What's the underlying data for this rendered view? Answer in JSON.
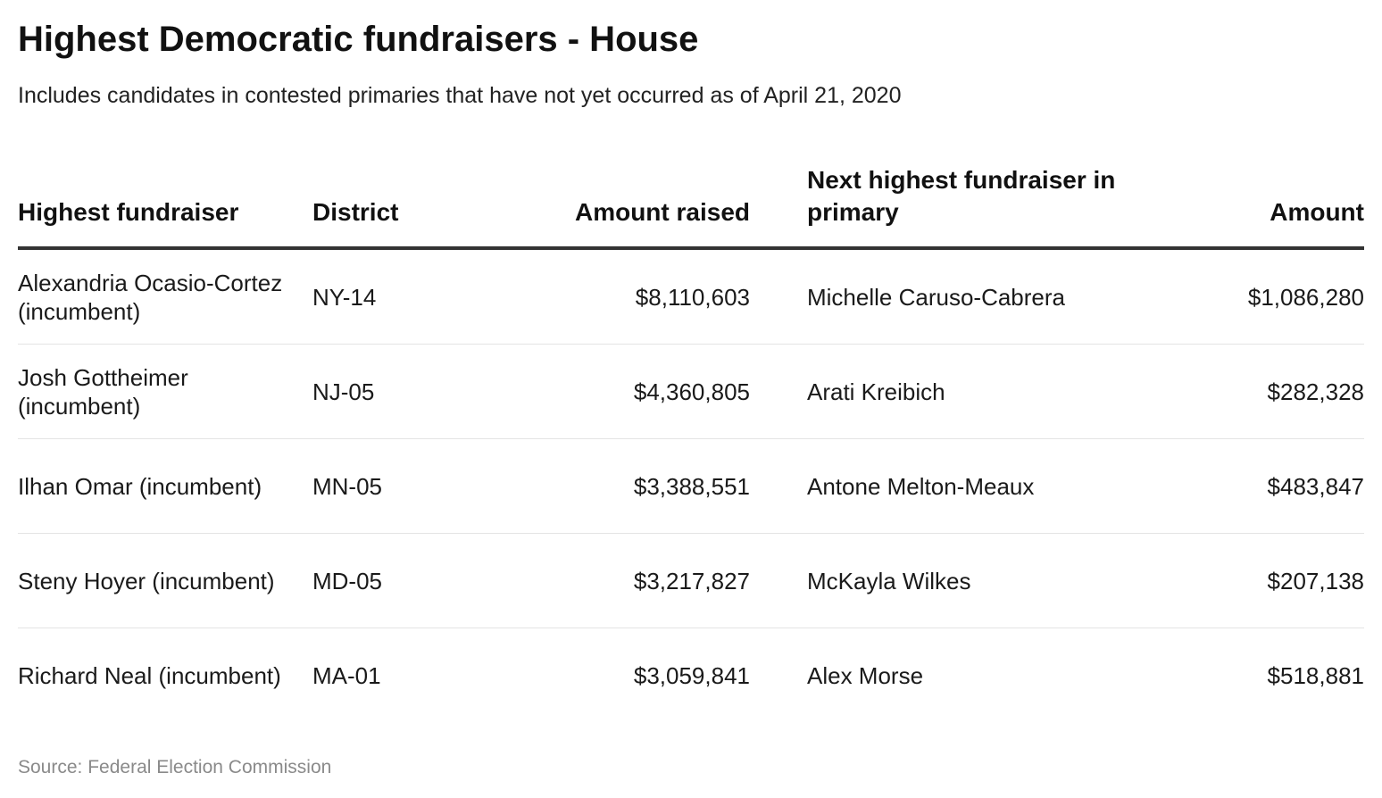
{
  "title": "Highest Democratic fundraisers - House",
  "subtitle": "Includes candidates in contested primaries that have not yet occurred as of April 21, 2020",
  "source": "Source: Federal Election Commission",
  "chart_data": {
    "type": "table",
    "columns": [
      "Highest fundraiser",
      "District",
      "Amount raised",
      "Next highest fundraiser in primary",
      "Amount"
    ],
    "rows": [
      {
        "fundraiser": "Alexandria Ocasio-Cortez (incumbent)",
        "district": "NY-14",
        "amount_raised": "$8,110,603",
        "next_fundraiser": "Michelle Caruso-Cabrera",
        "amount": "$1,086,280"
      },
      {
        "fundraiser": "Josh Gottheimer (incumbent)",
        "district": "NJ-05",
        "amount_raised": "$4,360,805",
        "next_fundraiser": "Arati Kreibich",
        "amount": "$282,328"
      },
      {
        "fundraiser": "Ilhan Omar (incumbent)",
        "district": "MN-05",
        "amount_raised": "$3,388,551",
        "next_fundraiser": "Antone Melton-Meaux",
        "amount": "$483,847"
      },
      {
        "fundraiser": "Steny Hoyer (incumbent)",
        "district": "MD-05",
        "amount_raised": "$3,217,827",
        "next_fundraiser": "McKayla Wilkes",
        "amount": "$207,138"
      },
      {
        "fundraiser": "Richard Neal (incumbent)",
        "district": "MA-01",
        "amount_raised": "$3,059,841",
        "next_fundraiser": "Alex Morse",
        "amount": "$518,881"
      }
    ]
  }
}
